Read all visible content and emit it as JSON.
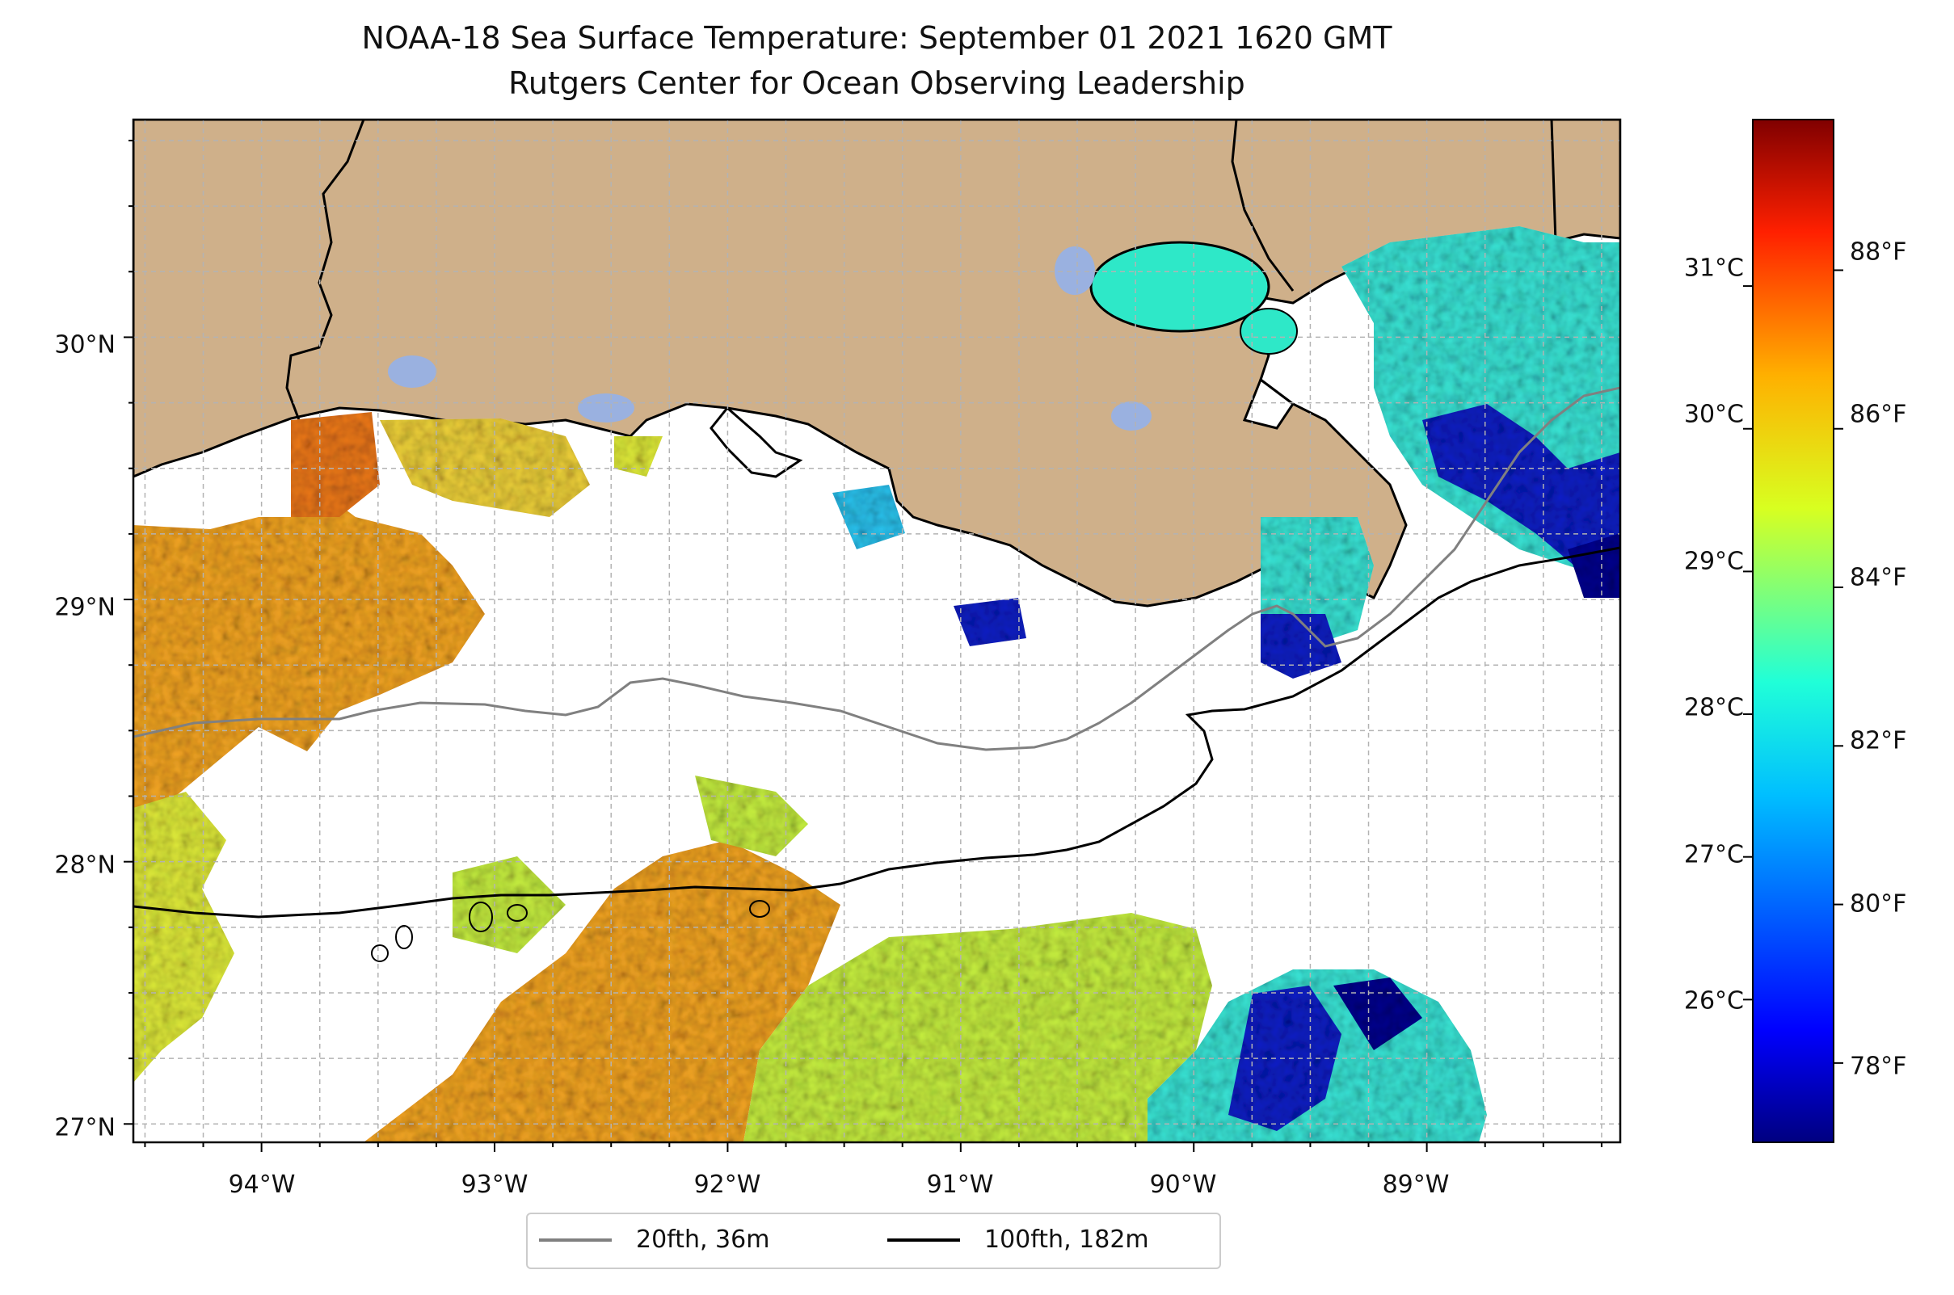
{
  "title": "NOAA-18 Sea Surface Temperature: September 01 2021 1620 GMT",
  "subtitle": "Rutgers Center for Ocean Observing Leadership",
  "colors": {
    "land": "#cfb08a",
    "lake": "#9ab1e0",
    "ocean_nodata": "#ffffff",
    "contour_20fth": "#808080",
    "contour_100fth": "#000000",
    "colormap": "jet"
  },
  "map": {
    "projection": "PlateCarree",
    "lon_range": [
      -94.55,
      -88.17
    ],
    "lat_range": [
      26.93,
      30.83
    ],
    "gridlines": true,
    "lat_labels": [
      "27°N",
      "28°N",
      "29°N",
      "30°N"
    ],
    "lon_labels": [
      "94°W",
      "93°W",
      "92°W",
      "91°W",
      "90°W",
      "89°W"
    ],
    "lat_ticks": [
      27,
      28,
      29,
      30
    ],
    "lon_ticks": [
      -94,
      -93,
      -92,
      -91,
      -90,
      -89
    ]
  },
  "colorbar": {
    "colormap": "jet",
    "celsius_labels": [
      "26°C",
      "27°C",
      "28°C",
      "29°C",
      "30°C",
      "31°C"
    ],
    "celsius_ticks": [
      26,
      27,
      28,
      29,
      30,
      31
    ],
    "fahrenheit_labels": [
      "78°F",
      "80°F",
      "82°F",
      "84°F",
      "86°F",
      "88°F"
    ],
    "fahrenheit_ticks": [
      78,
      80,
      82,
      84,
      86,
      88
    ],
    "range_f": [
      77.0,
      89.9
    ]
  },
  "legend": {
    "items": [
      {
        "label": "20fth, 36m",
        "color": "#808080"
      },
      {
        "label": "100fth, 182m",
        "color": "#000000"
      }
    ],
    "placement": "bottom-center"
  }
}
